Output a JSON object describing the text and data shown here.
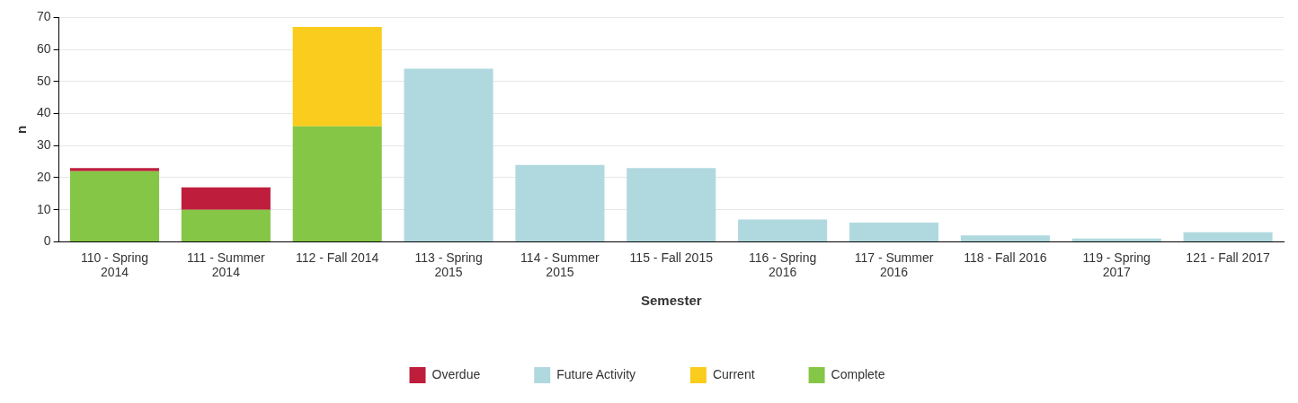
{
  "chart_data": {
    "type": "bar",
    "xlabel": "Semester",
    "ylabel": "n",
    "categories": [
      "110 - Spring 2014",
      "111 - Summer 2014",
      "112 - Fall 2014",
      "113 - Spring 2015",
      "114 - Summer 2015",
      "115 - Fall 2015",
      "116 - Spring 2016",
      "117 - Summer 2016",
      "118 - Fall 2016",
      "119 - Spring 2017",
      "121 - Fall 2017"
    ],
    "series": [
      {
        "name": "Complete",
        "color": "#86c646",
        "values": [
          22,
          10,
          36,
          null,
          null,
          null,
          null,
          null,
          null,
          null,
          null
        ]
      },
      {
        "name": "Current",
        "color": "#f9cc1d",
        "values": [
          null,
          null,
          31,
          null,
          null,
          null,
          null,
          null,
          null,
          null,
          null
        ]
      },
      {
        "name": "Future Activity",
        "color": "#b0d9df",
        "values": [
          null,
          null,
          null,
          54,
          24,
          23,
          7,
          6,
          2,
          1,
          3
        ]
      },
      {
        "name": "Overdue",
        "color": "#be1e3c",
        "values": [
          1,
          7,
          null,
          null,
          null,
          null,
          null,
          null,
          null,
          null,
          null
        ]
      }
    ],
    "stacked": true,
    "ylim": [
      0,
      70
    ],
    "yticks": [
      0,
      10,
      20,
      30,
      40,
      50,
      60,
      70
    ],
    "grid": "y",
    "legend": "bottom"
  }
}
